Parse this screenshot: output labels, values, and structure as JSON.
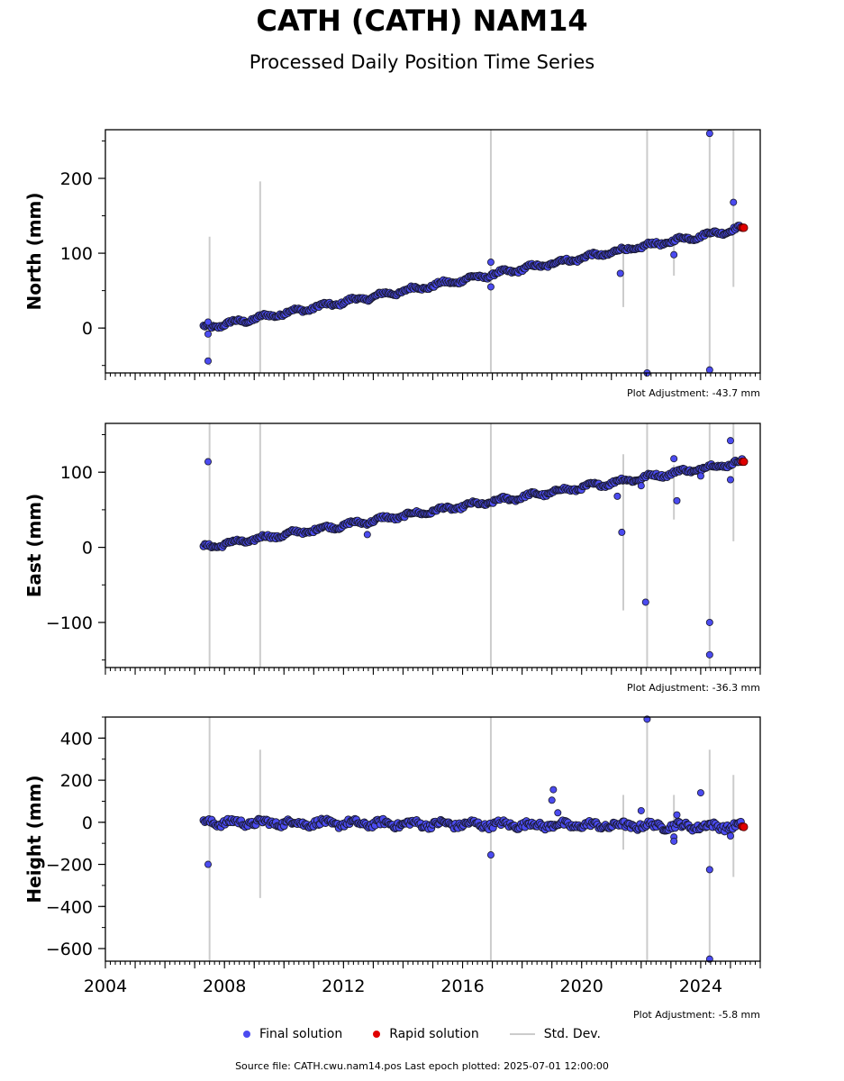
{
  "header": {
    "title": "CATH (CATH) NAM14",
    "subtitle": "Processed Daily Position Time Series"
  },
  "legend": {
    "final": "Final solution",
    "rapid": "Rapid solution",
    "std": "Std. Dev."
  },
  "footer": {
    "source": "Source file: CATH.cwu.nam14.pos  Last epoch plotted: 2025-07-01 12:00:00"
  },
  "colors": {
    "final": "#4b4bf0",
    "rapid": "#e00000",
    "stddev": "#cccccc",
    "edge": "#1a1a2e"
  },
  "chart_data": [
    {
      "type": "scatter",
      "ylabel": "North (mm)",
      "adjustment": "Plot Adjustment: -43.7 mm",
      "xlim": [
        2004,
        2026
      ],
      "ylim": [
        -60,
        265
      ],
      "yticks": [
        0,
        100,
        200
      ],
      "xticks": [],
      "trend": {
        "x_start": 2007.3,
        "y_start": 0,
        "x_end": 2025.45,
        "y_end": 134
      },
      "outliers": [
        [
          2007.45,
          -44
        ],
        [
          2007.45,
          8
        ],
        [
          2007.45,
          -8
        ],
        [
          2016.95,
          88
        ],
        [
          2016.95,
          55
        ],
        [
          2021.3,
          73
        ],
        [
          2022.2,
          -60
        ],
        [
          2023.1,
          98
        ],
        [
          2024.3,
          260
        ],
        [
          2024.3,
          -56
        ],
        [
          2025.1,
          168
        ]
      ],
      "errorbars": [
        [
          2007.5,
          -50,
          122
        ],
        [
          2009.2,
          -60,
          196
        ],
        [
          2016.95,
          -60,
          265
        ],
        [
          2021.4,
          28,
          108
        ],
        [
          2022.2,
          -60,
          265
        ],
        [
          2023.1,
          70,
          120
        ],
        [
          2024.3,
          -60,
          265
        ],
        [
          2025.1,
          55,
          265
        ]
      ],
      "rapid": [
        [
          2025.4,
          134
        ],
        [
          2025.45,
          134
        ]
      ]
    },
    {
      "type": "scatter",
      "ylabel": "East (mm)",
      "adjustment": "Plot Adjustment: -36.3 mm",
      "xlim": [
        2004,
        2026
      ],
      "ylim": [
        -160,
        165
      ],
      "yticks": [
        -100,
        0,
        100
      ],
      "xticks": [],
      "trend": {
        "x_start": 2007.3,
        "y_start": 0,
        "x_end": 2025.45,
        "y_end": 114
      },
      "outliers": [
        [
          2007.45,
          114
        ],
        [
          2012.8,
          17
        ],
        [
          2021.2,
          68
        ],
        [
          2021.35,
          20
        ],
        [
          2022.15,
          -73
        ],
        [
          2022.0,
          82
        ],
        [
          2023.1,
          118
        ],
        [
          2023.2,
          62
        ],
        [
          2024.0,
          95
        ],
        [
          2024.3,
          -100
        ],
        [
          2024.3,
          -143
        ],
        [
          2025.0,
          142
        ],
        [
          2025.0,
          90
        ]
      ],
      "errorbars": [
        [
          2007.5,
          -160,
          165
        ],
        [
          2009.2,
          -160,
          165
        ],
        [
          2016.95,
          -160,
          165
        ],
        [
          2021.4,
          -84,
          124
        ],
        [
          2022.2,
          -160,
          165
        ],
        [
          2023.1,
          37,
          110
        ],
        [
          2024.3,
          -160,
          165
        ],
        [
          2025.1,
          8,
          165
        ]
      ],
      "rapid": [
        [
          2025.4,
          114
        ],
        [
          2025.45,
          114
        ]
      ]
    },
    {
      "type": "scatter",
      "ylabel": "Height (mm)",
      "adjustment": "Plot Adjustment: -5.8 mm",
      "xlim": [
        2004,
        2026
      ],
      "ylim": [
        -660,
        500
      ],
      "yticks": [
        -600,
        -400,
        -200,
        0,
        200,
        400
      ],
      "xticks": [
        2004,
        2008,
        2012,
        2016,
        2020,
        2024
      ],
      "trend": {
        "x_start": 2007.3,
        "y_start": 0,
        "x_end": 2025.45,
        "y_end": -20
      },
      "outliers": [
        [
          2007.45,
          -200
        ],
        [
          2016.95,
          -155
        ],
        [
          2019.0,
          105
        ],
        [
          2019.05,
          155
        ],
        [
          2019.2,
          45
        ],
        [
          2022.2,
          490
        ],
        [
          2022.0,
          55
        ],
        [
          2023.1,
          -70
        ],
        [
          2023.1,
          -90
        ],
        [
          2023.2,
          35
        ],
        [
          2024.0,
          140
        ],
        [
          2024.3,
          -225
        ],
        [
          2024.3,
          -650
        ],
        [
          2025.0,
          -65
        ]
      ],
      "errorbars": [
        [
          2007.5,
          -660,
          500
        ],
        [
          2009.2,
          -360,
          345
        ],
        [
          2016.95,
          -660,
          500
        ],
        [
          2021.4,
          -130,
          130
        ],
        [
          2022.2,
          -660,
          500
        ],
        [
          2023.1,
          -40,
          130
        ],
        [
          2024.3,
          -660,
          345
        ],
        [
          2025.1,
          -260,
          225
        ]
      ],
      "rapid": [
        [
          2025.4,
          -20
        ],
        [
          2025.45,
          -22
        ]
      ]
    }
  ]
}
